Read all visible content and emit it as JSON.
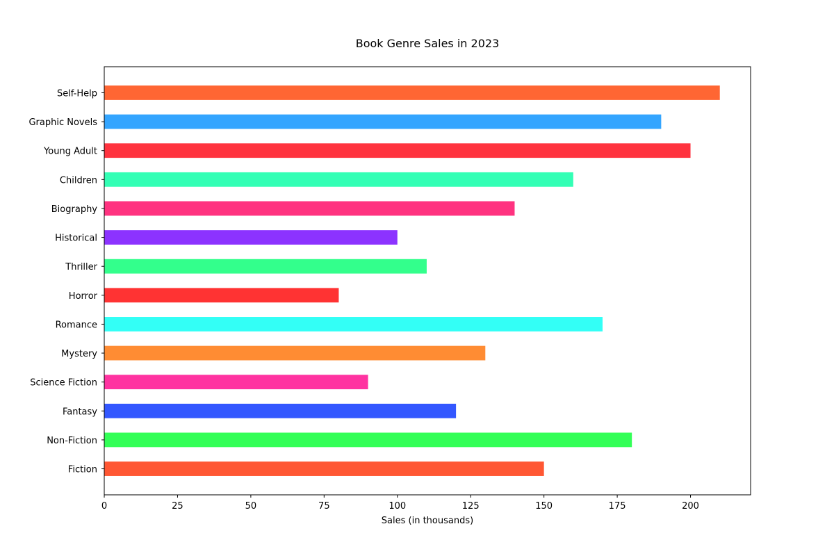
{
  "chart_data": {
    "type": "bar",
    "orientation": "horizontal",
    "title": "Book Genre Sales in 2023",
    "xlabel": "Sales (in thousands)",
    "ylabel": "",
    "categories": [
      "Fiction",
      "Non-Fiction",
      "Fantasy",
      "Science Fiction",
      "Mystery",
      "Romance",
      "Horror",
      "Thriller",
      "Historical",
      "Biography",
      "Children",
      "Young Adult",
      "Graphic Novels",
      "Self-Help"
    ],
    "values": [
      150,
      180,
      120,
      90,
      130,
      170,
      80,
      110,
      100,
      140,
      160,
      200,
      190,
      210
    ],
    "colors": [
      "#ff5733",
      "#33ff57",
      "#3357ff",
      "#ff33a1",
      "#ff8c33",
      "#33fff6",
      "#ff3333",
      "#33ff8c",
      "#8c33ff",
      "#ff3380",
      "#33ffb5",
      "#ff333f",
      "#33a5ff",
      "#ff6633"
    ],
    "xlim": [
      0,
      220.5
    ],
    "xticks": [
      0,
      25,
      50,
      75,
      100,
      125,
      150,
      175,
      200
    ],
    "grid": false,
    "legend": "none"
  }
}
